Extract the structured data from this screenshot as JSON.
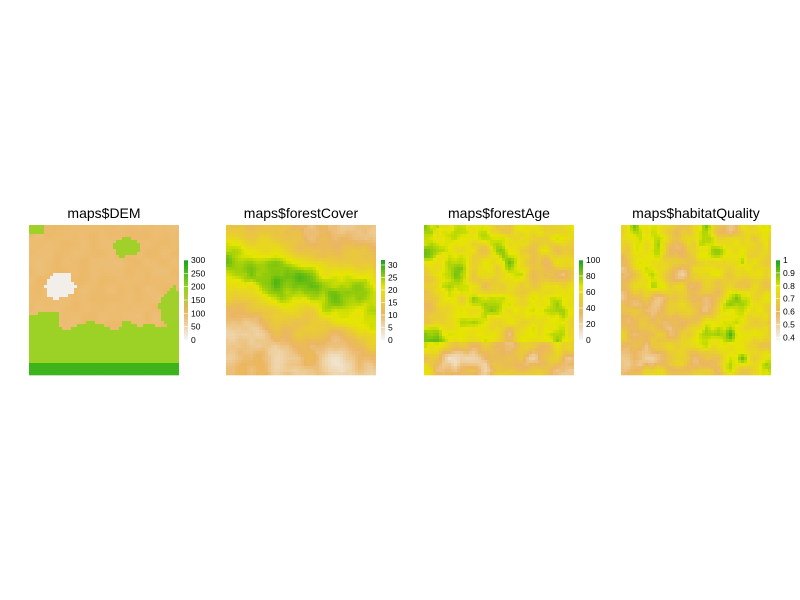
{
  "chart_data": [
    {
      "type": "heatmap",
      "title": "maps$DEM",
      "legend": {
        "ticks": [
          "300",
          "250",
          "200",
          "150",
          "100",
          "50",
          "0"
        ],
        "min": 0,
        "max": 300,
        "position": "right"
      },
      "colors": [
        "#f2f2f2",
        "#ebb661",
        "#8fd61c",
        "#1aa51c"
      ]
    },
    {
      "type": "heatmap",
      "title": "maps$forestCover",
      "legend": {
        "ticks": [
          "30",
          "25",
          "20",
          "15",
          "10",
          "5",
          "0"
        ],
        "min": 0,
        "max": 32,
        "position": "right"
      },
      "colors": [
        "#f2f2f2",
        "#ebb661",
        "#e6e600",
        "#1aa51c"
      ]
    },
    {
      "type": "heatmap",
      "title": "maps$forestAge",
      "legend": {
        "ticks": [
          "100",
          "80",
          "60",
          "40",
          "20",
          "0"
        ],
        "min": 0,
        "max": 100,
        "position": "right"
      },
      "colors": [
        "#f2f2f2",
        "#ebb661",
        "#e6e600",
        "#1aa51c"
      ]
    },
    {
      "type": "heatmap",
      "title": "maps$habitatQuality",
      "legend": {
        "ticks": [
          "1",
          "0.9",
          "0.8",
          "0.7",
          "0.6",
          "0.5",
          "0.4"
        ],
        "min": 0.38,
        "max": 1.0,
        "position": "right"
      },
      "colors": [
        "#f2f2f2",
        "#ebb661",
        "#e6e600",
        "#1aa51c"
      ]
    }
  ]
}
